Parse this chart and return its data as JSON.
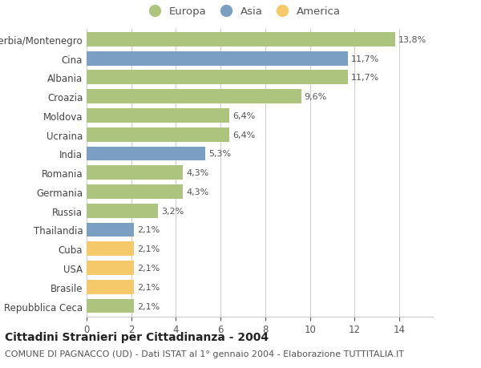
{
  "categories": [
    "Repubblica Ceca",
    "Brasile",
    "USA",
    "Cuba",
    "Thailandia",
    "Russia",
    "Germania",
    "Romania",
    "India",
    "Ucraina",
    "Moldova",
    "Croazia",
    "Albania",
    "Cina",
    "Serbia/Montenegro"
  ],
  "values": [
    2.1,
    2.1,
    2.1,
    2.1,
    2.1,
    3.2,
    4.3,
    4.3,
    5.3,
    6.4,
    6.4,
    9.6,
    11.7,
    11.7,
    13.8
  ],
  "continents": [
    "Europa",
    "America",
    "America",
    "America",
    "Asia",
    "Europa",
    "Europa",
    "Europa",
    "Asia",
    "Europa",
    "Europa",
    "Europa",
    "Europa",
    "Asia",
    "Europa"
  ],
  "labels": [
    "2,1%",
    "2,1%",
    "2,1%",
    "2,1%",
    "2,1%",
    "3,2%",
    "4,3%",
    "4,3%",
    "5,3%",
    "6,4%",
    "6,4%",
    "9,6%",
    "11,7%",
    "11,7%",
    "13,8%"
  ],
  "color_map": {
    "Europa": "#adc47e",
    "Asia": "#7b9fc2",
    "America": "#f5c96a"
  },
  "xlim": [
    0,
    15.5
  ],
  "xticks": [
    0,
    2,
    4,
    6,
    8,
    10,
    12,
    14
  ],
  "title_bold": "Cittadini Stranieri per Cittadinanza - 2004",
  "subtitle": "COMUNE DI PAGNACCO (UD) - Dati ISTAT al 1° gennaio 2004 - Elaborazione TUTTITALIA.IT",
  "background_color": "#ffffff",
  "bar_height": 0.75,
  "label_fontsize": 8,
  "tick_fontsize": 8.5,
  "title_fontsize": 10,
  "subtitle_fontsize": 8
}
